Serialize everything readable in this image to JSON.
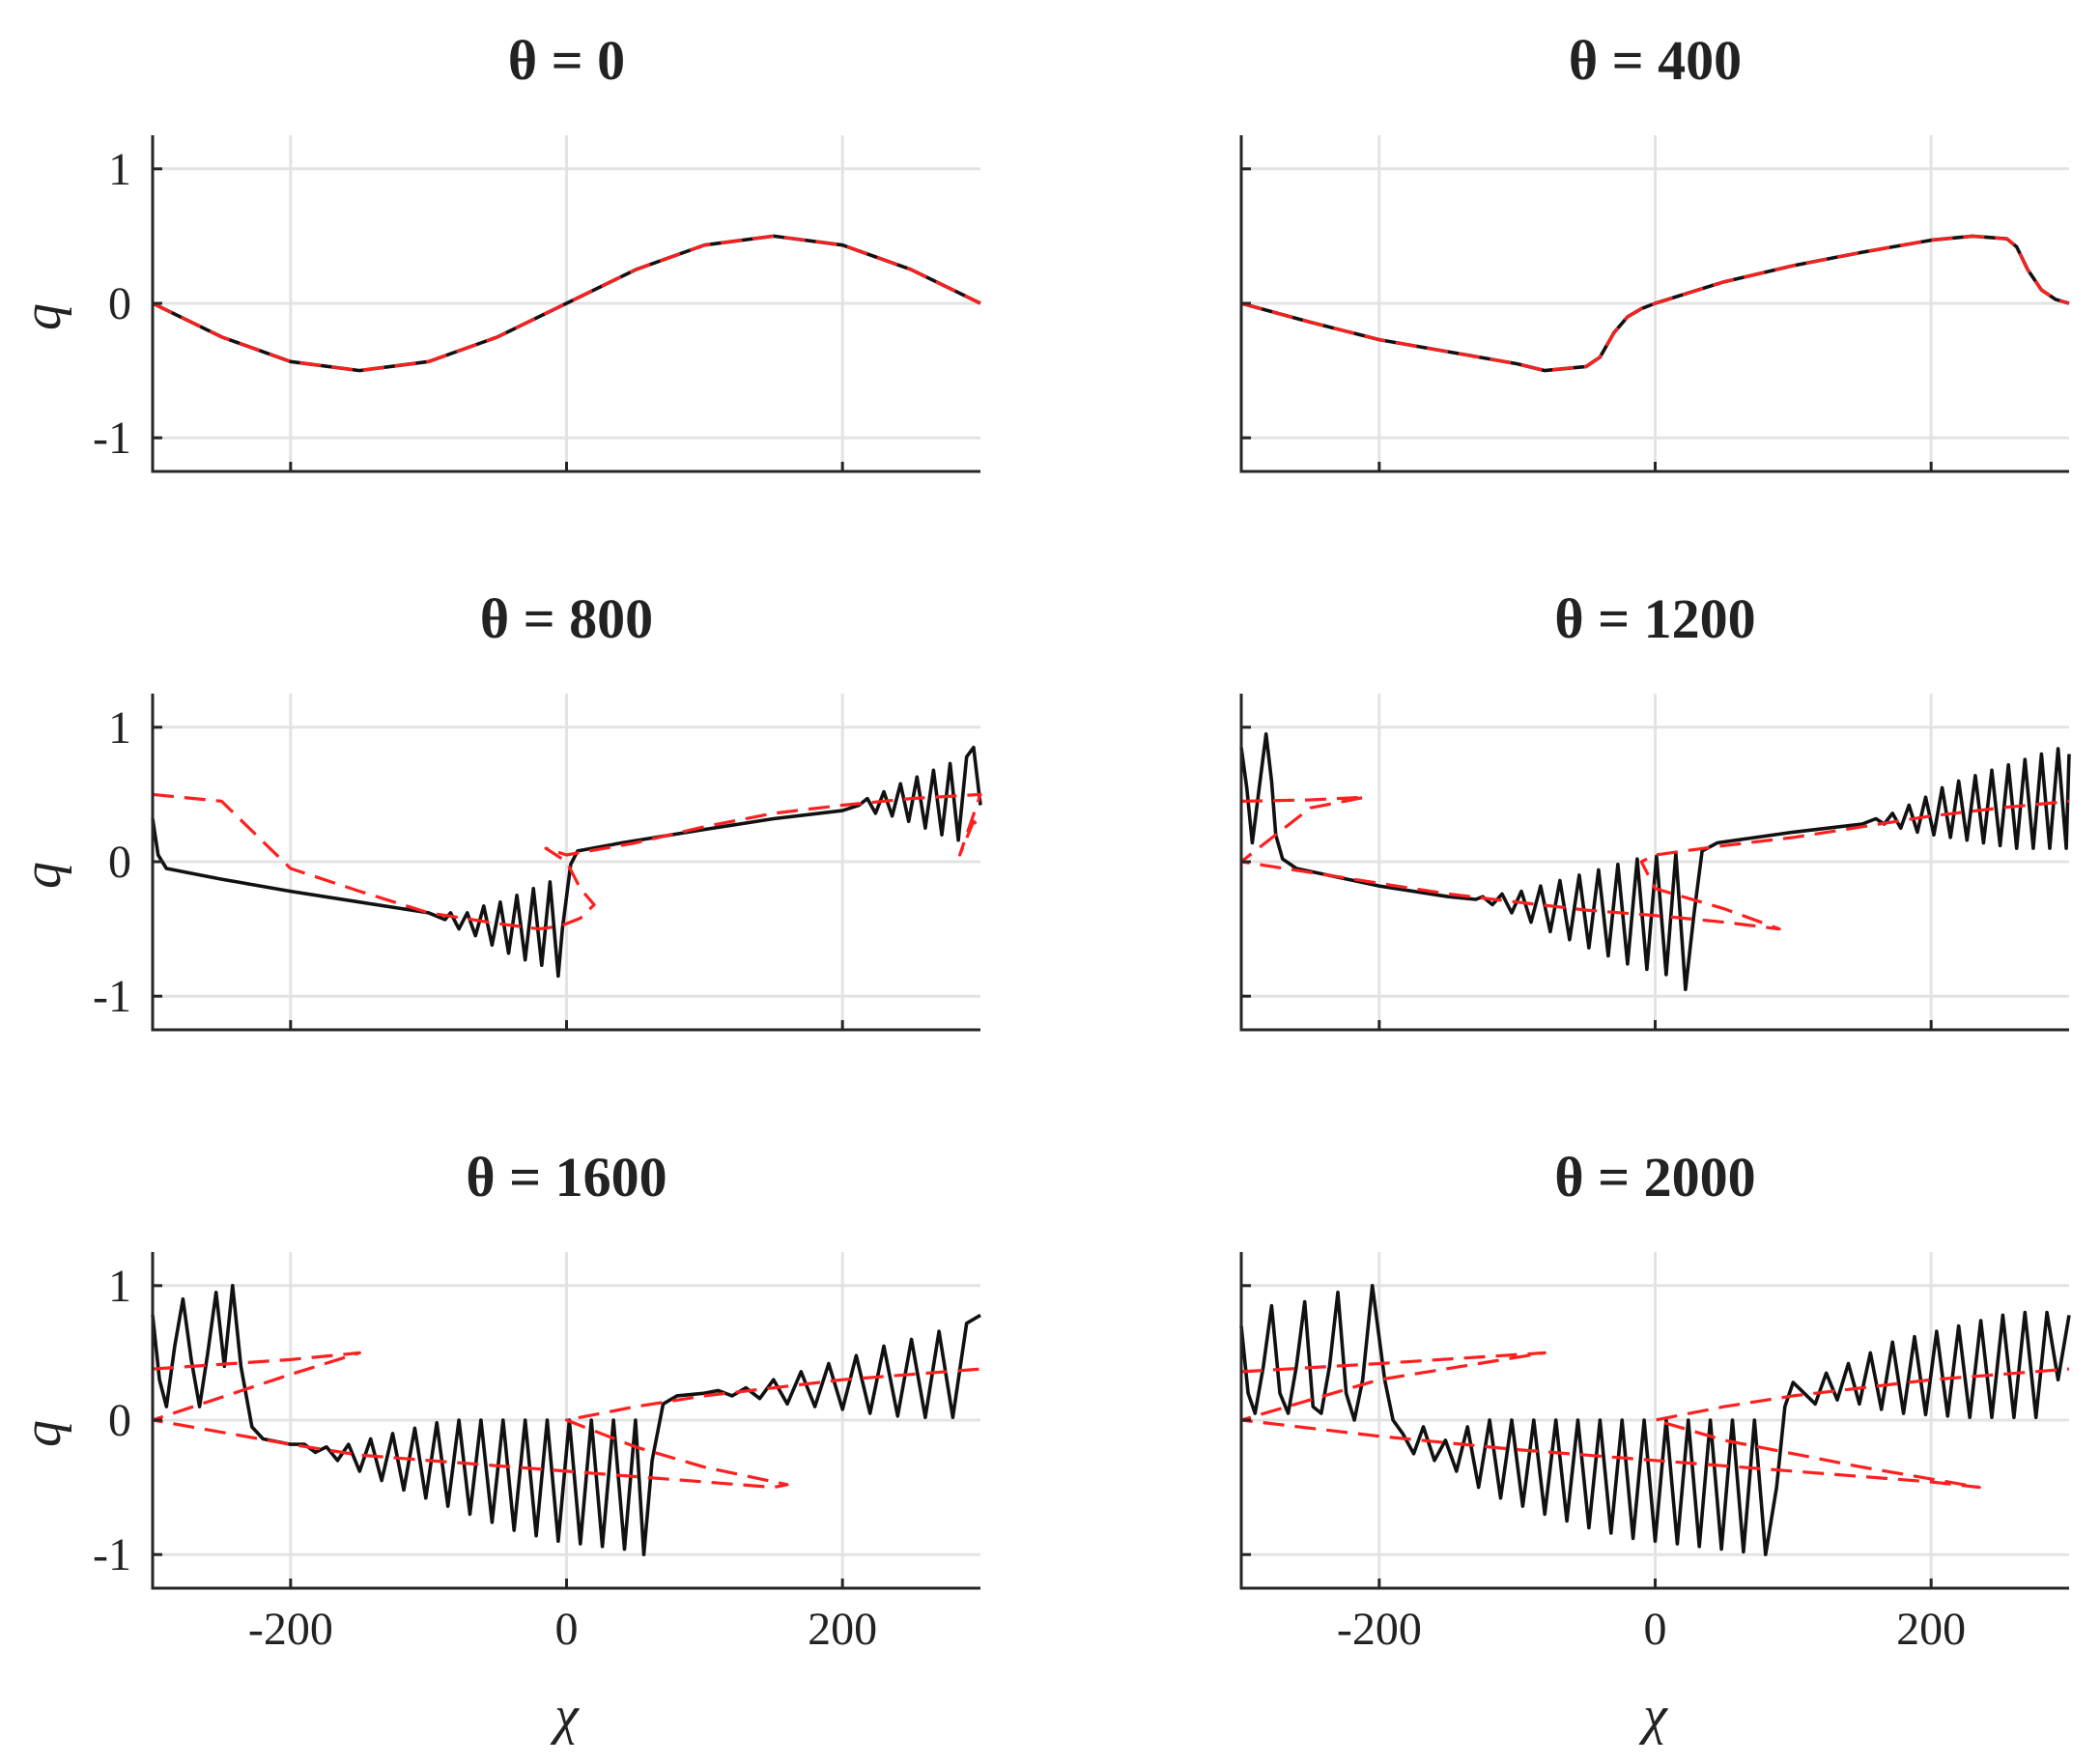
{
  "chart_data": [
    {
      "type": "line",
      "title": "θ = 0",
      "xlabel": "",
      "ylabel": "q",
      "xlim": [
        -300,
        300
      ],
      "ylim": [
        -1.25,
        1.25
      ],
      "xticks": [
        -200,
        0,
        200
      ],
      "yticks": [
        -1,
        0,
        1
      ],
      "ytick_labels": [
        "-1",
        "0",
        "1"
      ],
      "xtick_labels": [],
      "grid": true,
      "series": [
        {
          "name": "solid",
          "color": "#111111",
          "style": "solid",
          "x": [
            -300,
            -250,
            -200,
            -150,
            -100,
            -50,
            0,
            50,
            100,
            150,
            200,
            250,
            300
          ],
          "y": [
            0,
            -0.25,
            -0.433,
            -0.5,
            -0.433,
            -0.25,
            0,
            0.25,
            0.433,
            0.5,
            0.433,
            0.25,
            0
          ]
        },
        {
          "name": "dashed",
          "color": "#ff1f1f",
          "style": "dashed",
          "x": [
            -300,
            -250,
            -200,
            -150,
            -100,
            -50,
            0,
            50,
            100,
            150,
            200,
            250,
            300
          ],
          "y": [
            0,
            -0.25,
            -0.433,
            -0.5,
            -0.433,
            -0.25,
            0,
            0.25,
            0.433,
            0.5,
            0.433,
            0.25,
            0
          ]
        }
      ]
    },
    {
      "type": "line",
      "title": "θ = 400",
      "xlabel": "",
      "ylabel": "",
      "xlim": [
        -300,
        300
      ],
      "ylim": [
        -1.25,
        1.25
      ],
      "xticks": [
        -200,
        0,
        200
      ],
      "yticks": [
        -1,
        0,
        1
      ],
      "ytick_labels": [],
      "xtick_labels": [],
      "grid": true,
      "series": [
        {
          "name": "solid",
          "color": "#111111",
          "style": "solid",
          "x": [
            -300,
            -250,
            -200,
            -150,
            -100,
            -80,
            -50,
            -40,
            -30,
            -20,
            -10,
            0,
            50,
            100,
            150,
            200,
            230,
            255,
            262,
            270,
            280,
            290,
            300
          ],
          "y": [
            0,
            -0.14,
            -0.27,
            -0.36,
            -0.45,
            -0.5,
            -0.47,
            -0.4,
            -0.22,
            -0.1,
            -0.04,
            0,
            0.16,
            0.28,
            0.38,
            0.47,
            0.5,
            0.48,
            0.42,
            0.25,
            0.1,
            0.03,
            0
          ]
        },
        {
          "name": "dashed",
          "color": "#ff1f1f",
          "style": "dashed",
          "x": [
            -300,
            -250,
            -200,
            -150,
            -100,
            -80,
            -50,
            -40,
            -30,
            -20,
            -10,
            0,
            50,
            100,
            150,
            200,
            230,
            255,
            262,
            270,
            280,
            290,
            300
          ],
          "y": [
            0,
            -0.14,
            -0.27,
            -0.36,
            -0.45,
            -0.5,
            -0.47,
            -0.4,
            -0.22,
            -0.1,
            -0.04,
            0,
            0.16,
            0.28,
            0.38,
            0.47,
            0.5,
            0.48,
            0.42,
            0.25,
            0.1,
            0.03,
            0
          ]
        }
      ]
    },
    {
      "type": "line",
      "title": "θ = 800",
      "xlabel": "",
      "ylabel": "q",
      "xlim": [
        -300,
        300
      ],
      "ylim": [
        -1.25,
        1.25
      ],
      "xticks": [
        -200,
        0,
        200
      ],
      "yticks": [
        -1,
        0,
        1
      ],
      "ytick_labels": [
        "-1",
        "0",
        "1"
      ],
      "xtick_labels": [],
      "grid": true,
      "series": [
        {
          "name": "solid",
          "color": "#111111",
          "style": "solid",
          "x": [
            -300,
            -296,
            -290,
            -250,
            -200,
            -150,
            -100,
            -88,
            -84,
            -78,
            -72,
            -66,
            -60,
            -54,
            -48,
            -42,
            -36,
            -30,
            -24,
            -18,
            -12,
            -6,
            -3,
            3,
            8,
            40,
            100,
            150,
            200,
            212,
            218,
            224,
            230,
            236,
            242,
            248,
            254,
            260,
            266,
            272,
            278,
            284,
            290,
            295,
            300
          ],
          "y": [
            0.32,
            0.05,
            -0.05,
            -0.13,
            -0.22,
            -0.3,
            -0.38,
            -0.43,
            -0.38,
            -0.5,
            -0.38,
            -0.55,
            -0.33,
            -0.62,
            -0.3,
            -0.68,
            -0.25,
            -0.73,
            -0.2,
            -0.77,
            -0.15,
            -0.85,
            -0.5,
            -0.02,
            0.08,
            0.14,
            0.24,
            0.32,
            0.38,
            0.42,
            0.47,
            0.36,
            0.52,
            0.34,
            0.58,
            0.3,
            0.63,
            0.25,
            0.68,
            0.2,
            0.73,
            0.16,
            0.78,
            0.85,
            0.42
          ]
        },
        {
          "name": "dashed",
          "color": "#ff1f1f",
          "style": "dashed",
          "x": [
            -300,
            -250,
            -200,
            -150,
            -100,
            -50,
            -20,
            -5,
            10,
            20,
            10,
            0,
            -15,
            0,
            50,
            100,
            150,
            200,
            250,
            300,
            285,
            295,
            300
          ],
          "y": [
            0.5,
            0.45,
            -0.05,
            -0.22,
            -0.38,
            -0.46,
            -0.5,
            -0.48,
            -0.42,
            -0.32,
            -0.2,
            0,
            0.1,
            0.05,
            0.14,
            0.26,
            0.36,
            0.42,
            0.47,
            0.5,
            0.05,
            0.3,
            0.25
          ]
        }
      ]
    },
    {
      "type": "line",
      "title": "θ = 1200",
      "xlabel": "",
      "ylabel": "",
      "xlim": [
        -300,
        300
      ],
      "ylim": [
        -1.25,
        1.25
      ],
      "xticks": [
        -200,
        0,
        200
      ],
      "yticks": [
        -1,
        0,
        1
      ],
      "ytick_labels": [],
      "xtick_labels": [],
      "grid": true,
      "series": [
        {
          "name": "solid",
          "color": "#111111",
          "style": "solid",
          "x": [
            -300,
            -296,
            -292,
            -287,
            -282,
            -278,
            -275,
            -270,
            -260,
            -200,
            -150,
            -130,
            -125,
            -118,
            -111,
            -104,
            -97,
            -90,
            -83,
            -76,
            -69,
            -62,
            -55,
            -48,
            -41,
            -34,
            -27,
            -20,
            -13,
            -6,
            1,
            8,
            15,
            22,
            28,
            34,
            45,
            100,
            150,
            160,
            166,
            172,
            178,
            184,
            190,
            196,
            202,
            208,
            214,
            220,
            226,
            232,
            238,
            244,
            250,
            256,
            262,
            268,
            274,
            280,
            286,
            292,
            298,
            300
          ],
          "y": [
            0.85,
            0.55,
            0.14,
            0.55,
            0.95,
            0.6,
            0.2,
            0.02,
            -0.05,
            -0.18,
            -0.26,
            -0.28,
            -0.26,
            -0.32,
            -0.24,
            -0.38,
            -0.22,
            -0.45,
            -0.18,
            -0.52,
            -0.14,
            -0.58,
            -0.1,
            -0.64,
            -0.06,
            -0.7,
            -0.02,
            -0.76,
            0.02,
            -0.8,
            0.04,
            -0.84,
            0.06,
            -0.95,
            -0.4,
            0.08,
            0.14,
            0.22,
            0.28,
            0.32,
            0.28,
            0.36,
            0.25,
            0.42,
            0.22,
            0.48,
            0.2,
            0.55,
            0.18,
            0.6,
            0.16,
            0.64,
            0.14,
            0.68,
            0.12,
            0.72,
            0.1,
            0.76,
            0.1,
            0.8,
            0.1,
            0.84,
            0.1,
            0.8
          ]
        },
        {
          "name": "dashed",
          "color": "#ff1f1f",
          "style": "dashed",
          "x": [
            -300,
            -250,
            -210,
            -250,
            -300,
            -250,
            -200,
            -150,
            -100,
            -50,
            0,
            50,
            90,
            50,
            0,
            -10,
            0,
            50,
            100,
            150,
            200,
            250,
            300
          ],
          "y": [
            0.45,
            0.46,
            0.48,
            0.4,
            0.0,
            -0.08,
            -0.16,
            -0.24,
            -0.3,
            -0.36,
            -0.4,
            -0.45,
            -0.5,
            -0.35,
            -0.2,
            0.0,
            0.05,
            0.12,
            0.18,
            0.26,
            0.34,
            0.4,
            0.45
          ]
        }
      ]
    },
    {
      "type": "line",
      "title": "θ = 1600",
      "xlabel": "χ",
      "ylabel": "q",
      "xlim": [
        -300,
        300
      ],
      "ylim": [
        -1.25,
        1.25
      ],
      "xticks": [
        -200,
        0,
        200
      ],
      "yticks": [
        -1,
        0,
        1
      ],
      "ytick_labels": [
        "-1",
        "0",
        "1"
      ],
      "xtick_labels": [
        "-200",
        "0",
        "200"
      ],
      "grid": true,
      "series": [
        {
          "name": "solid",
          "color": "#111111",
          "style": "solid",
          "x": [
            -300,
            -295,
            -290,
            -284,
            -278,
            -272,
            -266,
            -260,
            -254,
            -248,
            -242,
            -236,
            -228,
            -220,
            -200,
            -190,
            -182,
            -174,
            -166,
            -158,
            -150,
            -142,
            -134,
            -126,
            -118,
            -110,
            -102,
            -94,
            -86,
            -78,
            -70,
            -62,
            -54,
            -46,
            -38,
            -30,
            -22,
            -14,
            -6,
            2,
            10,
            18,
            26,
            34,
            42,
            50,
            56,
            62,
            70,
            80,
            100,
            110,
            120,
            130,
            140,
            150,
            160,
            170,
            180,
            190,
            200,
            210,
            220,
            230,
            240,
            250,
            260,
            270,
            280,
            290,
            300
          ],
          "y": [
            0.78,
            0.3,
            0.1,
            0.55,
            0.9,
            0.45,
            0.1,
            0.5,
            0.95,
            0.4,
            1.0,
            0.4,
            -0.05,
            -0.14,
            -0.18,
            -0.18,
            -0.24,
            -0.2,
            -0.3,
            -0.18,
            -0.38,
            -0.14,
            -0.45,
            -0.1,
            -0.52,
            -0.06,
            -0.58,
            -0.02,
            -0.64,
            0.0,
            -0.7,
            0.0,
            -0.76,
            0.0,
            -0.82,
            0.0,
            -0.86,
            0.0,
            -0.9,
            0.0,
            -0.92,
            0.0,
            -0.94,
            0.0,
            -0.96,
            0.0,
            -1.0,
            -0.3,
            0.12,
            0.18,
            0.2,
            0.22,
            0.18,
            0.24,
            0.16,
            0.3,
            0.12,
            0.36,
            0.1,
            0.42,
            0.08,
            0.48,
            0.05,
            0.55,
            0.03,
            0.6,
            0.02,
            0.66,
            0.02,
            0.72,
            0.78
          ]
        },
        {
          "name": "dashed",
          "color": "#ff1f1f",
          "style": "dashed",
          "x": [
            -300,
            -200,
            -150,
            -200,
            -300,
            -200,
            -150,
            -100,
            -50,
            0,
            50,
            100,
            150,
            160,
            100,
            50,
            0,
            50,
            100,
            150,
            200,
            250,
            300
          ],
          "y": [
            0.38,
            0.45,
            0.5,
            0.34,
            0.0,
            -0.18,
            -0.26,
            -0.3,
            -0.34,
            -0.38,
            -0.42,
            -0.46,
            -0.5,
            -0.48,
            -0.35,
            -0.2,
            0.0,
            0.1,
            0.18,
            0.24,
            0.3,
            0.34,
            0.38
          ]
        }
      ]
    },
    {
      "type": "line",
      "title": "θ = 2000",
      "xlabel": "χ",
      "ylabel": "",
      "xlim": [
        -300,
        300
      ],
      "ylim": [
        -1.25,
        1.25
      ],
      "xticks": [
        -200,
        0,
        200
      ],
      "yticks": [
        -1,
        0,
        1
      ],
      "ytick_labels": [],
      "xtick_labels": [
        "-200",
        "0",
        "200"
      ],
      "grid": true,
      "series": [
        {
          "name": "solid",
          "color": "#111111",
          "style": "solid",
          "x": [
            -300,
            -295,
            -290,
            -284,
            -278,
            -272,
            -266,
            -260,
            -254,
            -248,
            -242,
            -236,
            -230,
            -224,
            -218,
            -212,
            -205,
            -196,
            -190,
            -183,
            -175,
            -168,
            -160,
            -152,
            -144,
            -136,
            -128,
            -120,
            -112,
            -104,
            -96,
            -88,
            -80,
            -72,
            -64,
            -56,
            -48,
            -40,
            -32,
            -24,
            -16,
            -8,
            0,
            8,
            16,
            24,
            32,
            40,
            48,
            56,
            64,
            72,
            80,
            88,
            94,
            100,
            108,
            116,
            124,
            132,
            140,
            148,
            156,
            164,
            172,
            180,
            188,
            196,
            204,
            212,
            220,
            228,
            236,
            244,
            252,
            260,
            268,
            276,
            284,
            292,
            300
          ],
          "y": [
            0.7,
            0.2,
            0.05,
            0.4,
            0.85,
            0.2,
            0.05,
            0.4,
            0.88,
            0.1,
            0.05,
            0.4,
            0.95,
            0.2,
            0.0,
            0.3,
            1.0,
            0.3,
            0.0,
            -0.1,
            -0.25,
            -0.05,
            -0.3,
            -0.15,
            -0.38,
            -0.05,
            -0.5,
            0.0,
            -0.58,
            0.0,
            -0.64,
            0.0,
            -0.7,
            0.0,
            -0.75,
            0.0,
            -0.8,
            0.0,
            -0.84,
            0.0,
            -0.88,
            0.0,
            -0.9,
            0.0,
            -0.92,
            0.0,
            -0.94,
            0.0,
            -0.96,
            0.0,
            -0.98,
            0.0,
            -1.0,
            -0.5,
            0.1,
            0.28,
            0.2,
            0.12,
            0.35,
            0.15,
            0.42,
            0.12,
            0.5,
            0.08,
            0.58,
            0.05,
            0.62,
            0.04,
            0.66,
            0.03,
            0.7,
            0.02,
            0.74,
            0.02,
            0.78,
            0.02,
            0.8,
            0.02,
            0.8,
            0.3,
            0.78
          ]
        },
        {
          "name": "dashed",
          "color": "#ff1f1f",
          "style": "dashed",
          "x": [
            -300,
            -200,
            -80,
            -200,
            -300,
            -200,
            -100,
            0,
            100,
            200,
            235,
            150,
            50,
            0,
            50,
            100,
            150,
            200,
            250,
            300
          ],
          "y": [
            0.36,
            0.42,
            0.5,
            0.3,
            0.0,
            -0.12,
            -0.22,
            -0.3,
            -0.38,
            -0.46,
            -0.5,
            -0.35,
            -0.15,
            0.0,
            0.1,
            0.18,
            0.24,
            0.3,
            0.34,
            0.38
          ]
        }
      ]
    }
  ]
}
